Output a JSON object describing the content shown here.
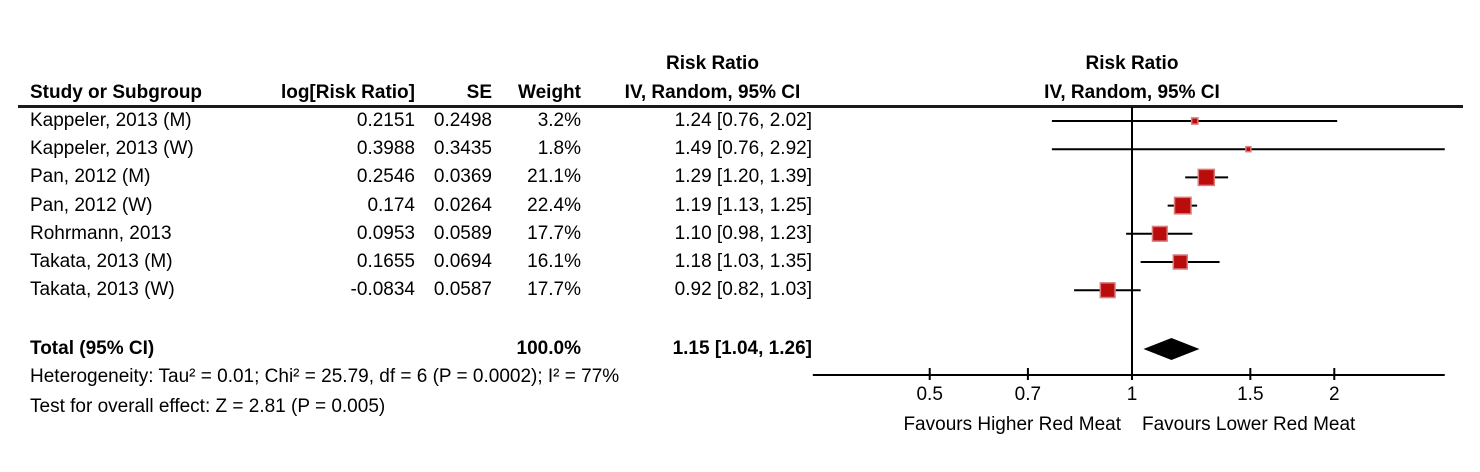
{
  "columns": {
    "study": "Study or Subgroup",
    "log_rr": "log[Risk Ratio]",
    "se": "SE",
    "weight": "Weight",
    "effect_line1": "Risk Ratio",
    "effect_line2": "IV, Random, 95% CI"
  },
  "plot_header": {
    "line1": "Risk Ratio",
    "line2": "IV, Random, 95% CI"
  },
  "footer": {
    "heterogeneity": "Heterogeneity: Tau² = 0.01; Chi² = 25.79, df = 6 (P = 0.0002); I² = 77%",
    "overall_effect": "Test for overall effect: Z = 2.81 (P = 0.005)"
  },
  "colors": {
    "marker_fill": "#BB0C0C",
    "marker_border": "#DB7C7C",
    "line": "#000000",
    "diamond": "#000000"
  },
  "chart_data": {
    "type": "scatter",
    "subtype": "forest-plot",
    "x_scale": "log",
    "x_ticks": [
      0.5,
      0.7,
      1,
      1.5,
      2
    ],
    "null_line": 1,
    "x_axis_min": 0.335,
    "x_axis_max": 2.92,
    "favours_left": "Favours Higher Red Meat",
    "favours_right": "Favours Lower Red Meat",
    "studies": [
      {
        "label": "Kappeler, 2013 (M)",
        "log_rr_text": "0.2151",
        "se_text": "0.2498",
        "weight_text": "3.2%",
        "ci_text": "1.24 [0.76, 2.02]",
        "rr": 1.24,
        "low": 0.76,
        "high": 2.02,
        "weight": 3.2
      },
      {
        "label": "Kappeler, 2013 (W)",
        "log_rr_text": "0.3988",
        "se_text": "0.3435",
        "weight_text": "1.8%",
        "ci_text": "1.49 [0.76, 2.92]",
        "rr": 1.49,
        "low": 0.76,
        "high": 2.92,
        "weight": 1.8
      },
      {
        "label": "Pan, 2012 (M)",
        "log_rr_text": "0.2546",
        "se_text": "0.0369",
        "weight_text": "21.1%",
        "ci_text": "1.29 [1.20, 1.39]",
        "rr": 1.29,
        "low": 1.2,
        "high": 1.39,
        "weight": 21.1
      },
      {
        "label": "Pan, 2012 (W)",
        "log_rr_text": "0.174",
        "se_text": "0.0264",
        "weight_text": "22.4%",
        "ci_text": "1.19 [1.13, 1.25]",
        "rr": 1.19,
        "low": 1.13,
        "high": 1.25,
        "weight": 22.4
      },
      {
        "label": "Rohrmann, 2013",
        "log_rr_text": "0.0953",
        "se_text": "0.0589",
        "weight_text": "17.7%",
        "ci_text": "1.10 [0.98, 1.23]",
        "rr": 1.1,
        "low": 0.98,
        "high": 1.23,
        "weight": 17.7
      },
      {
        "label": "Takata, 2013 (M)",
        "log_rr_text": "0.1655",
        "se_text": "0.0694",
        "weight_text": "16.1%",
        "ci_text": "1.18 [1.03, 1.35]",
        "rr": 1.18,
        "low": 1.03,
        "high": 1.35,
        "weight": 16.1
      },
      {
        "label": "Takata, 2013 (W)",
        "log_rr_text": "-0.0834",
        "se_text": "0.0587",
        "weight_text": "17.7%",
        "ci_text": "0.92 [0.82, 1.03]",
        "rr": 0.92,
        "low": 0.82,
        "high": 1.03,
        "weight": 17.7
      }
    ],
    "total": {
      "label": "Total (95% CI)",
      "weight_text": "100.0%",
      "ci_text": "1.15 [1.04, 1.26]",
      "rr": 1.15,
      "low": 1.04,
      "high": 1.26
    }
  }
}
